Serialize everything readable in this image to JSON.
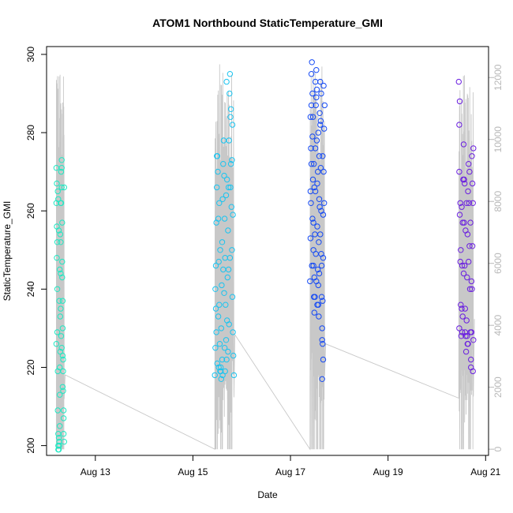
{
  "chart_data": {
    "type": "scatter",
    "title": "ATOM1 Northbound StaticTemperature_GMI",
    "xlabel": "Date",
    "ylabel": "StaticTemperature_GMI",
    "x_unit": "days (August)",
    "xlim": [
      12.0,
      21.06
    ],
    "ylim": [
      197.5,
      302.0
    ],
    "y2lim": [
      -200,
      13000
    ],
    "x_ticks": [
      {
        "value": 13,
        "label": "Aug 13"
      },
      {
        "value": 15,
        "label": "Aug 15"
      },
      {
        "value": 17,
        "label": "Aug 17"
      },
      {
        "value": 19,
        "label": "Aug 19"
      },
      {
        "value": 21,
        "label": "Aug 21"
      }
    ],
    "y_ticks": [
      200,
      220,
      240,
      260,
      280,
      300
    ],
    "y2_ticks": [
      0,
      2000,
      4000,
      6000,
      8000,
      10000,
      12000
    ],
    "grid": false,
    "colors": {
      "altitude_line": "#c8c8c8",
      "right_axis": "#b8b8b8"
    },
    "series": [
      {
        "x_range": [
          12.2,
          12.36
        ],
        "color": "#1de9c3",
        "points": [
          [
            12.2,
            271
          ],
          [
            12.2,
            262
          ],
          [
            12.21,
            256
          ],
          [
            12.21,
            248
          ],
          [
            12.22,
            240
          ],
          [
            12.22,
            229
          ],
          [
            12.23,
            219
          ],
          [
            12.23,
            209
          ],
          [
            12.24,
            203
          ],
          [
            12.24,
            199
          ],
          [
            12.25,
            199
          ],
          [
            12.26,
            200
          ],
          [
            12.26,
            201
          ],
          [
            12.27,
            205
          ],
          [
            12.27,
            213
          ],
          [
            12.28,
            224
          ],
          [
            12.28,
            233
          ],
          [
            12.29,
            244
          ],
          [
            12.29,
            252
          ],
          [
            12.3,
            262
          ],
          [
            12.3,
            270
          ],
          [
            12.31,
            273
          ],
          [
            12.31,
            266
          ],
          [
            12.32,
            257
          ],
          [
            12.32,
            247
          ],
          [
            12.33,
            237
          ],
          [
            12.33,
            230
          ],
          [
            12.34,
            222
          ],
          [
            12.34,
            214
          ],
          [
            12.35,
            207
          ],
          [
            12.35,
            203
          ],
          [
            12.36,
            201
          ],
          [
            12.21,
            267
          ],
          [
            12.23,
            265
          ],
          [
            12.25,
            255
          ],
          [
            12.27,
            245
          ],
          [
            12.29,
            235
          ],
          [
            12.31,
            225
          ],
          [
            12.33,
            215
          ],
          [
            12.35,
            209
          ],
          [
            12.24,
            263
          ],
          [
            12.28,
            254
          ],
          [
            12.32,
            243
          ],
          [
            12.26,
            237
          ],
          [
            12.3,
            228
          ],
          [
            12.34,
            219
          ],
          [
            12.22,
            252
          ],
          [
            12.36,
            266
          ],
          [
            12.2,
            226
          ],
          [
            12.29,
            262
          ],
          [
            12.31,
            271
          ],
          [
            12.33,
            223
          ],
          [
            12.27,
            220
          ],
          [
            12.25,
            202
          ],
          [
            12.24,
            200
          ]
        ]
      },
      {
        "x_range": [
          15.45,
          15.84
        ],
        "color": "#1ac4f0",
        "points": [
          [
            15.45,
            218
          ],
          [
            15.46,
            225
          ],
          [
            15.47,
            235
          ],
          [
            15.47,
            246
          ],
          [
            15.48,
            257
          ],
          [
            15.49,
            266
          ],
          [
            15.5,
            274
          ],
          [
            15.51,
            270
          ],
          [
            15.52,
            258
          ],
          [
            15.53,
            247
          ],
          [
            15.54,
            236
          ],
          [
            15.55,
            226
          ],
          [
            15.56,
            219
          ],
          [
            15.57,
            220
          ],
          [
            15.58,
            230
          ],
          [
            15.59,
            241
          ],
          [
            15.6,
            252
          ],
          [
            15.61,
            263
          ],
          [
            15.62,
            272
          ],
          [
            15.63,
            278
          ],
          [
            15.64,
            269
          ],
          [
            15.65,
            258
          ],
          [
            15.66,
            248
          ],
          [
            15.67,
            236
          ],
          [
            15.68,
            227
          ],
          [
            15.69,
            222
          ],
          [
            15.7,
            232
          ],
          [
            15.71,
            243
          ],
          [
            15.72,
            255
          ],
          [
            15.73,
            266
          ],
          [
            15.74,
            278
          ],
          [
            15.75,
            290
          ],
          [
            15.76,
            295
          ],
          [
            15.77,
            284
          ],
          [
            15.78,
            272
          ],
          [
            15.79,
            261
          ],
          [
            15.8,
            250
          ],
          [
            15.81,
            238
          ],
          [
            15.82,
            229
          ],
          [
            15.83,
            223
          ],
          [
            15.84,
            218
          ],
          [
            15.46,
            240
          ],
          [
            15.48,
            229
          ],
          [
            15.5,
            221
          ],
          [
            15.52,
            233
          ],
          [
            15.54,
            262
          ],
          [
            15.56,
            250
          ],
          [
            15.58,
            217
          ],
          [
            15.6,
            222
          ],
          [
            15.62,
            245
          ],
          [
            15.64,
            239
          ],
          [
            15.66,
            219
          ],
          [
            15.68,
            264
          ],
          [
            15.7,
            268
          ],
          [
            15.72,
            224
          ],
          [
            15.74,
            231
          ],
          [
            15.76,
            248
          ],
          [
            15.78,
            286
          ],
          [
            15.8,
            273
          ],
          [
            15.82,
            259
          ],
          [
            15.49,
            274
          ],
          [
            15.53,
            220
          ],
          [
            15.57,
            219
          ],
          [
            15.61,
            218
          ],
          [
            15.65,
            225
          ],
          [
            15.69,
            293
          ],
          [
            15.73,
            245
          ],
          [
            15.77,
            266
          ],
          [
            15.81,
            282
          ]
        ]
      },
      {
        "x_range": [
          17.4,
          17.7
        ],
        "color": "#1449f5",
        "points": [
          [
            17.4,
            242
          ],
          [
            17.41,
            253
          ],
          [
            17.41,
            265
          ],
          [
            17.42,
            276
          ],
          [
            17.43,
            287
          ],
          [
            17.43,
            295
          ],
          [
            17.44,
            298
          ],
          [
            17.45,
            290
          ],
          [
            17.45,
            279
          ],
          [
            17.46,
            268
          ],
          [
            17.47,
            257
          ],
          [
            17.47,
            246
          ],
          [
            17.48,
            238
          ],
          [
            17.49,
            234
          ],
          [
            17.49,
            243
          ],
          [
            17.5,
            254
          ],
          [
            17.51,
            265
          ],
          [
            17.51,
            276
          ],
          [
            17.52,
            287
          ],
          [
            17.53,
            296
          ],
          [
            17.53,
            289
          ],
          [
            17.54,
            278
          ],
          [
            17.55,
            267
          ],
          [
            17.55,
            256
          ],
          [
            17.56,
            245
          ],
          [
            17.57,
            236
          ],
          [
            17.57,
            241
          ],
          [
            17.58,
            252
          ],
          [
            17.59,
            263
          ],
          [
            17.59,
            274
          ],
          [
            17.6,
            285
          ],
          [
            17.61,
            293
          ],
          [
            17.61,
            282
          ],
          [
            17.62,
            271
          ],
          [
            17.63,
            260
          ],
          [
            17.63,
            249
          ],
          [
            17.64,
            238
          ],
          [
            17.65,
            227
          ],
          [
            17.65,
            217
          ],
          [
            17.66,
            226
          ],
          [
            17.66,
            237
          ],
          [
            17.67,
            248
          ],
          [
            17.67,
            259
          ],
          [
            17.68,
            270
          ],
          [
            17.69,
            281
          ],
          [
            17.7,
            287
          ],
          [
            17.42,
            262
          ],
          [
            17.44,
            246
          ],
          [
            17.46,
            284
          ],
          [
            17.48,
            272
          ],
          [
            17.5,
            238
          ],
          [
            17.52,
            249
          ],
          [
            17.54,
            291
          ],
          [
            17.56,
            270
          ],
          [
            17.58,
            233
          ],
          [
            17.6,
            261
          ],
          [
            17.62,
            283
          ],
          [
            17.64,
            246
          ],
          [
            17.66,
            274
          ],
          [
            17.68,
            292
          ],
          [
            17.41,
            284
          ],
          [
            17.45,
            258
          ],
          [
            17.49,
            266
          ],
          [
            17.53,
            242
          ],
          [
            17.57,
            280
          ],
          [
            17.61,
            254
          ],
          [
            17.65,
            230
          ],
          [
            17.69,
            262
          ],
          [
            17.43,
            272
          ],
          [
            17.47,
            250
          ],
          [
            17.51,
            293
          ],
          [
            17.55,
            236
          ],
          [
            17.59,
            244
          ],
          [
            17.63,
            290
          ],
          [
            17.67,
            222
          ]
        ]
      },
      {
        "x_range": [
          20.45,
          20.75
        ],
        "color": "#6a1ee0",
        "points": [
          [
            20.45,
            293
          ],
          [
            20.46,
            282
          ],
          [
            20.46,
            270
          ],
          [
            20.47,
            259
          ],
          [
            20.48,
            247
          ],
          [
            20.49,
            236
          ],
          [
            20.5,
            228
          ],
          [
            20.51,
            235
          ],
          [
            20.52,
            246
          ],
          [
            20.53,
            257
          ],
          [
            20.54,
            268
          ],
          [
            20.55,
            277
          ],
          [
            20.56,
            268
          ],
          [
            20.56,
            257
          ],
          [
            20.57,
            246
          ],
          [
            20.58,
            235
          ],
          [
            20.59,
            228
          ],
          [
            20.6,
            224
          ],
          [
            20.61,
            232
          ],
          [
            20.62,
            243
          ],
          [
            20.63,
            254
          ],
          [
            20.64,
            265
          ],
          [
            20.65,
            272
          ],
          [
            20.66,
            262
          ],
          [
            20.67,
            251
          ],
          [
            20.68,
            240
          ],
          [
            20.69,
            229
          ],
          [
            20.7,
            222
          ],
          [
            20.71,
            229
          ],
          [
            20.72,
            240
          ],
          [
            20.73,
            251
          ],
          [
            20.74,
            262
          ],
          [
            20.75,
            276
          ],
          [
            20.47,
            288
          ],
          [
            20.49,
            250
          ],
          [
            20.51,
            261
          ],
          [
            20.53,
            233
          ],
          [
            20.55,
            244
          ],
          [
            20.57,
            267
          ],
          [
            20.59,
            255
          ],
          [
            20.61,
            262
          ],
          [
            20.63,
            226
          ],
          [
            20.65,
            247
          ],
          [
            20.67,
            270
          ],
          [
            20.69,
            257
          ],
          [
            20.71,
            242
          ],
          [
            20.73,
            267
          ],
          [
            20.75,
            227
          ],
          [
            20.46,
            230
          ],
          [
            20.52,
            229
          ],
          [
            20.58,
            229
          ],
          [
            20.64,
            226
          ],
          [
            20.7,
            220
          ],
          [
            20.74,
            219
          ],
          [
            20.48,
            262
          ],
          [
            20.62,
            228
          ],
          [
            20.72,
            274
          ]
        ]
      }
    ]
  }
}
